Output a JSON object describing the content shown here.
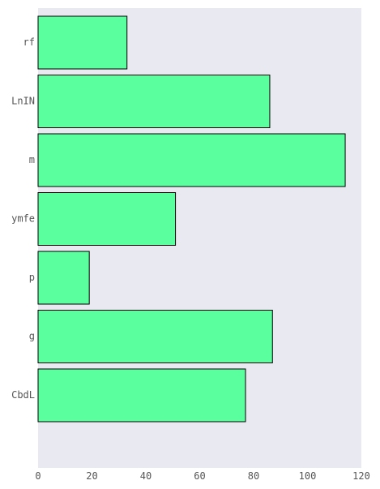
{
  "chart_data": {
    "type": "bar",
    "orientation": "horizontal",
    "categories": [
      "rf",
      "LnIN",
      "m",
      "ymfe",
      "p",
      "g",
      "CbdL"
    ],
    "values": [
      33,
      86,
      114,
      51,
      19,
      87,
      77
    ],
    "xlim": [
      0,
      120
    ],
    "xticks": [
      0,
      20,
      40,
      60,
      80,
      100,
      120
    ],
    "title": "",
    "xlabel": "",
    "ylabel": "",
    "grid": false,
    "colors": {
      "bar_fill": "#5aff9e",
      "bar_edge": "#000000",
      "plot_bg": "#e9e9f2"
    }
  }
}
